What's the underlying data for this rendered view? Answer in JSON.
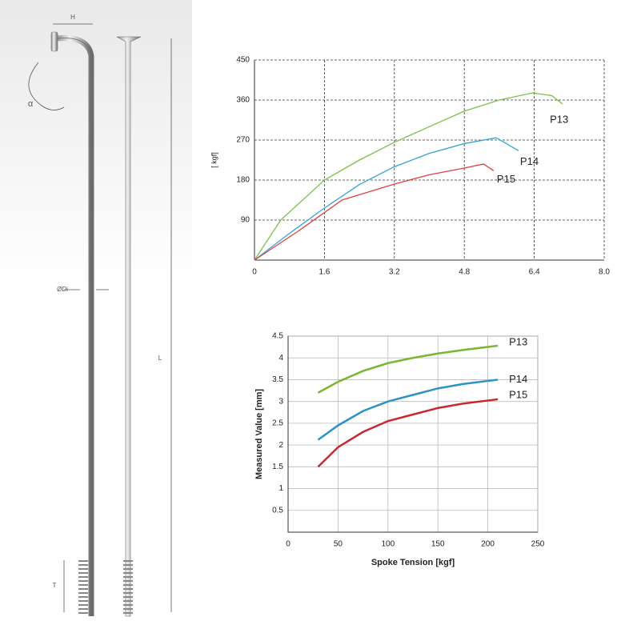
{
  "diagram": {
    "labels": [
      "H",
      "α",
      "ØDi",
      "L",
      "T"
    ]
  },
  "chart_data": [
    {
      "type": "line",
      "y_label": "[ kgf]",
      "xlim": [
        0,
        8
      ],
      "xticks": [
        0,
        1.6,
        3.2,
        4.8,
        6.4,
        {
          "value": 8,
          "label": "8.0"
        }
      ],
      "ylim": [
        0,
        450
      ],
      "yticks": [
        90,
        180,
        270,
        360,
        450
      ],
      "grid": "dashed",
      "series": [
        {
          "name": "P13",
          "color": "#7cc04a",
          "x": [
            0,
            0.6,
            1.6,
            2.4,
            3.2,
            4,
            4.8,
            5.6,
            6.36,
            6.8,
            7.05
          ],
          "values": [
            0,
            90,
            180,
            225,
            265,
            300,
            335,
            360,
            376,
            370,
            351
          ]
        },
        {
          "name": "P14",
          "color": "#33a3d6",
          "x": [
            0,
            0.8,
            1.6,
            2.4,
            3.2,
            4,
            4.8,
            5.53,
            6.04
          ],
          "values": [
            0,
            60,
            117,
            170,
            210,
            240,
            262,
            275,
            246
          ]
        },
        {
          "name": "P15",
          "color": "#e0403e",
          "x": [
            0,
            1,
            2,
            3.2,
            4,
            4.8,
            5.24,
            5.47
          ],
          "values": [
            0,
            65,
            135,
            171,
            192,
            207,
            216,
            201
          ]
        }
      ]
    },
    {
      "type": "line",
      "x_label": "Spoke Tension [kgf]",
      "y_label": "Measured Value [mm]",
      "xlim": [
        0,
        250
      ],
      "xticks": [
        0,
        50,
        100,
        150,
        200,
        250
      ],
      "ylim": [
        0,
        4.5
      ],
      "yticks": [
        0.5,
        1,
        1.5,
        2,
        2.5,
        3,
        3.5,
        4,
        4.5
      ],
      "grid": "solid",
      "series": [
        {
          "name": "P13",
          "color": "#7cb531",
          "x": [
            30,
            50,
            75,
            100,
            125,
            150,
            175,
            210
          ],
          "values": [
            3.2,
            3.45,
            3.7,
            3.88,
            4.0,
            4.1,
            4.18,
            4.28
          ]
        },
        {
          "name": "P14",
          "color": "#2a93c9",
          "x": [
            30,
            50,
            75,
            100,
            125,
            150,
            175,
            210
          ],
          "values": [
            2.12,
            2.45,
            2.78,
            3.0,
            3.15,
            3.3,
            3.4,
            3.5
          ]
        },
        {
          "name": "P15",
          "color": "#c8282e",
          "x": [
            30,
            50,
            75,
            100,
            125,
            150,
            175,
            210
          ],
          "values": [
            1.5,
            1.95,
            2.3,
            2.55,
            2.7,
            2.85,
            2.95,
            3.05
          ]
        }
      ]
    }
  ]
}
